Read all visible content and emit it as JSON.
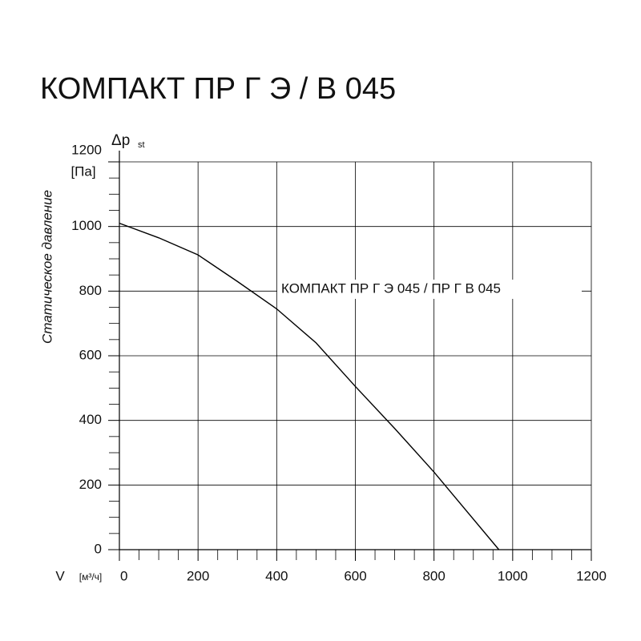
{
  "chart_data": {
    "type": "line",
    "title": "КОМПАКТ ПР Г Э / В 045",
    "y_label": "Статическое давление",
    "y_unit": "[Па]",
    "y_symbol": "Δp",
    "y_symbol_sub": "st",
    "x_label": "V",
    "x_unit": "[м³/ч]",
    "x": [
      0,
      100,
      200,
      300,
      400,
      500,
      600,
      700,
      800,
      965
    ],
    "series": [
      {
        "name": "КОМПАКТ ПР Г Э 045 / ПР Г В 045",
        "color": "#000000",
        "values": [
          1010,
          965,
          912,
          830,
          745,
          640,
          505,
          375,
          240,
          0
        ]
      }
    ],
    "xlim": [
      0,
      1200
    ],
    "ylim": [
      0,
      1200
    ],
    "xticks": [
      0,
      200,
      400,
      600,
      800,
      1000,
      1200
    ],
    "yticks": [
      0,
      200,
      400,
      600,
      800,
      1000,
      1200
    ],
    "xminorticks": [
      50,
      100,
      150,
      250,
      300,
      350,
      450,
      500,
      550,
      650,
      700,
      750,
      850,
      900,
      950,
      1050,
      1100,
      1150
    ],
    "yminorticks": [
      50,
      100,
      150,
      250,
      300,
      350,
      450,
      500,
      550,
      650,
      700,
      750,
      850,
      900,
      950,
      1050,
      1100,
      1150
    ],
    "grid": true
  }
}
